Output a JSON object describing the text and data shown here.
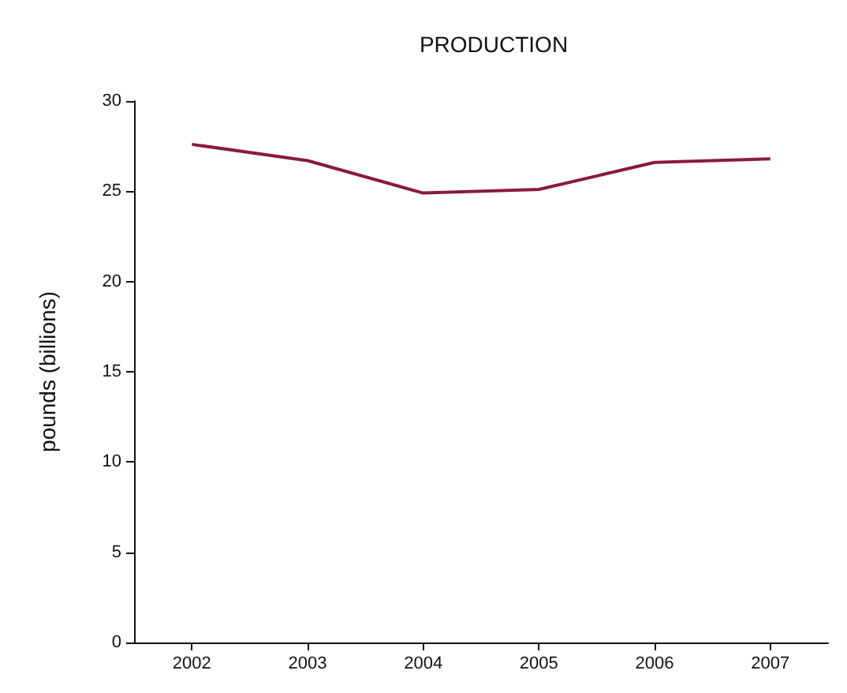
{
  "chart_data": {
    "type": "line",
    "title": "PRODUCTION",
    "ylabel": "pounds (billions)",
    "categories": [
      "2002",
      "2003",
      "2004",
      "2005",
      "2006",
      "2007"
    ],
    "series": [
      {
        "color": "#8b1a3a",
        "values": [
          27.6,
          26.7,
          24.9,
          25.1,
          26.6,
          26.8
        ]
      }
    ],
    "ylim": [
      0,
      30
    ],
    "yticks": [
      0,
      5,
      10,
      15,
      20,
      25,
      30
    ],
    "grid": false,
    "marker": "none",
    "line_style": "solid"
  }
}
